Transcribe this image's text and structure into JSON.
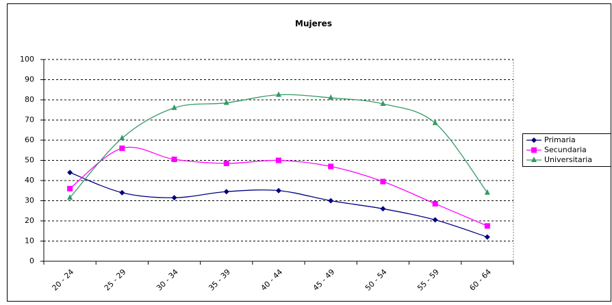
{
  "chart_data": {
    "type": "line",
    "title": "Mujeres",
    "categories": [
      "20 - 24",
      "25 - 29",
      "30 - 34",
      "35 - 39",
      "40 - 44",
      "45 - 49",
      "50 - 54",
      "55 - 59",
      "60 - 64"
    ],
    "series": [
      {
        "name": "Primaria",
        "color": "#000080",
        "marker": "diamond",
        "values": [
          44,
          34,
          31.5,
          34.5,
          35,
          30,
          26,
          20.5,
          12
        ]
      },
      {
        "name": "Secundaria",
        "color": "#ff00ff",
        "marker": "square",
        "values": [
          36,
          56,
          50.5,
          48.5,
          50,
          47,
          39.5,
          28.5,
          17.5
        ]
      },
      {
        "name": "Universitaria",
        "color": "#339966",
        "marker": "triangle",
        "values": [
          31.5,
          61,
          76,
          78.5,
          82.5,
          81,
          78,
          68.5,
          34
        ]
      }
    ],
    "ylim": [
      0,
      100
    ],
    "yticks": [
      0,
      10,
      20,
      30,
      40,
      50,
      60,
      70,
      80,
      90,
      100
    ],
    "grid": true,
    "smooth": true,
    "legend": "right"
  }
}
